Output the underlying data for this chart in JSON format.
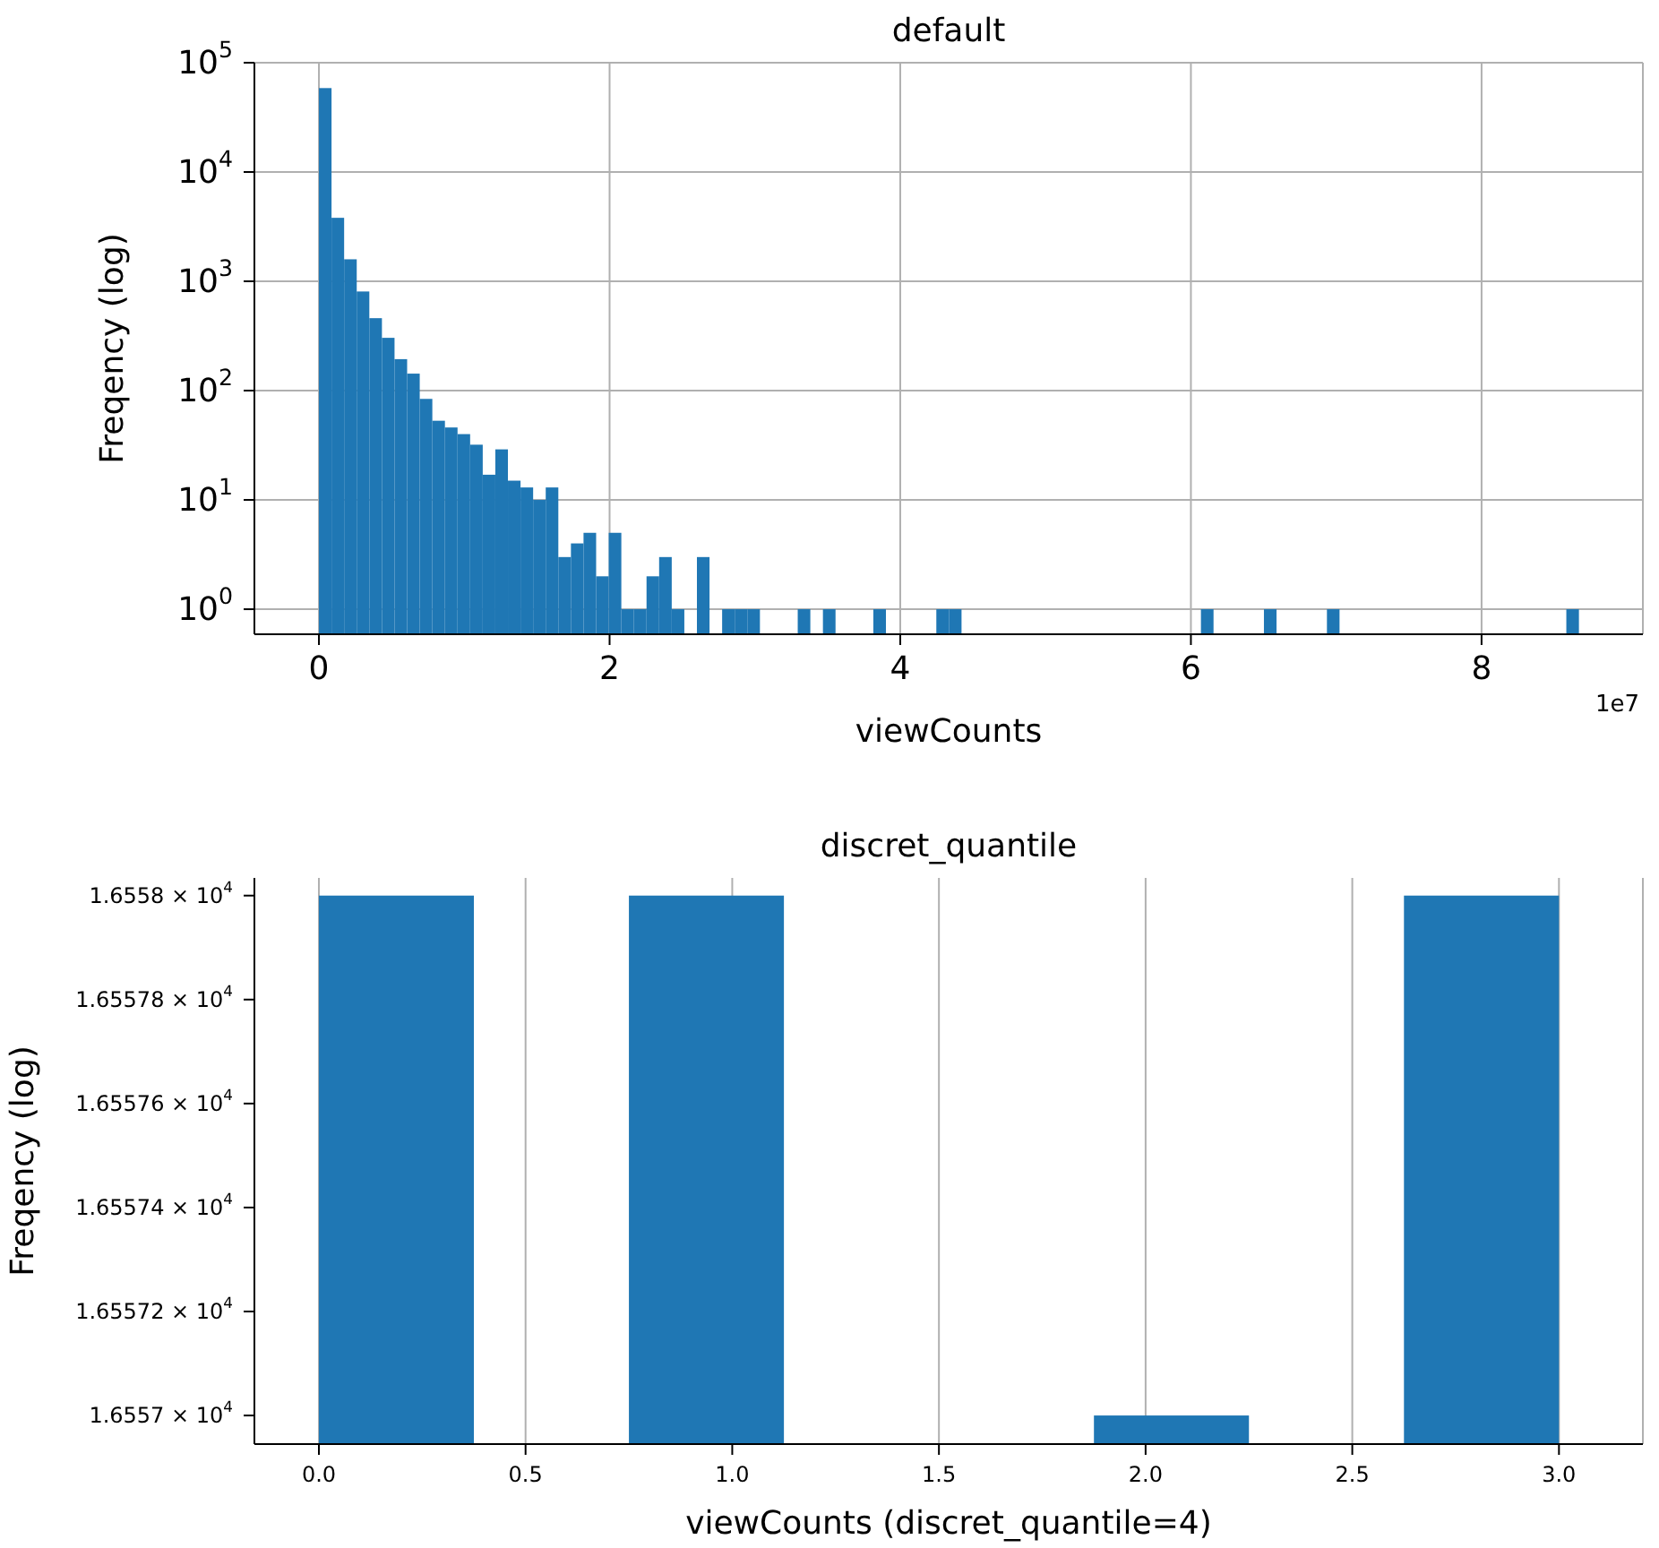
{
  "chart_data": [
    {
      "type": "histogram",
      "title": "default",
      "xlabel": "viewCounts",
      "ylabel": "Freqency (log)",
      "annotations": [
        "1e7"
      ],
      "bins": [
        0,
        0.0867,
        0.1734,
        0.2601,
        0.3468,
        0.4335,
        0.5202,
        0.6069,
        0.6936,
        0.7803,
        0.867,
        0.9537,
        1.0404,
        1.1271,
        1.2138,
        1.3005,
        1.3872,
        1.4739,
        1.5606,
        1.6473,
        1.734,
        1.8207,
        1.9074,
        1.9941,
        2.0808,
        2.1675,
        2.2542,
        2.3409,
        2.4276,
        2.5143,
        2.601,
        2.6877,
        2.7744,
        2.8611,
        2.9478,
        3.0345,
        3.1212,
        3.2079,
        3.2946,
        3.3813,
        3.468,
        3.5547,
        3.6414,
        3.7281,
        3.8148,
        3.9015,
        3.9882,
        4.0749,
        4.1616,
        4.2483,
        4.335,
        4.4217,
        4.5084,
        4.5951,
        4.6818,
        4.7685,
        4.8552,
        4.9419,
        5.0286,
        5.1153,
        5.202,
        5.2887,
        5.3754,
        5.4621,
        5.5488,
        5.6355,
        5.7222,
        5.8089,
        5.8956,
        5.9823,
        6.069,
        6.1557,
        6.2424,
        6.3291,
        6.4158,
        6.5025,
        6.5892,
        6.6759,
        6.7626,
        6.8493,
        6.936,
        7.0227,
        7.1094,
        7.1961,
        7.2828,
        7.3695,
        7.4562,
        7.5429,
        7.6296,
        7.7163,
        7.803,
        7.8897,
        7.9764,
        8.0631,
        8.1498,
        8.2365,
        8.3232,
        8.4099,
        8.4966,
        8.5833,
        8.67
      ],
      "values": [
        58600,
        3810,
        1590,
        807,
        460,
        304,
        194,
        143,
        84,
        53,
        46,
        40,
        32,
        17,
        29,
        15,
        13,
        10,
        13,
        3,
        4,
        5,
        2,
        5,
        1,
        1,
        2,
        3,
        1,
        null,
        3,
        null,
        1,
        1,
        1,
        null,
        null,
        null,
        1,
        null,
        1,
        null,
        null,
        null,
        1,
        null,
        null,
        null,
        null,
        1,
        1,
        null,
        null,
        null,
        null,
        null,
        null,
        null,
        null,
        null,
        null,
        null,
        null,
        null,
        null,
        null,
        null,
        null,
        null,
        null,
        1,
        null,
        null,
        null,
        null,
        1,
        null,
        null,
        null,
        null,
        1,
        null,
        null,
        null,
        null,
        null,
        null,
        null,
        null,
        null,
        null,
        null,
        null,
        null,
        null,
        null,
        null,
        null,
        null,
        1
      ],
      "color": "#1f77b4",
      "xlim": [
        -0.444,
        9.11
      ],
      "ylim": [
        0.59,
        100000
      ],
      "xticks": [
        0,
        2,
        4,
        6,
        8
      ],
      "yticks": [
        {
          "value": 1,
          "label": "10$^{0}$"
        },
        {
          "value": 10,
          "label": "10$^{1}$"
        },
        {
          "value": 100,
          "label": "10$^{2}$"
        },
        {
          "value": 1000,
          "label": "10$^{3}$"
        },
        {
          "value": 10000,
          "label": "10$^{4}$"
        },
        {
          "value": 100000,
          "label": "10$^{5}$"
        }
      ],
      "log": true,
      "grid": true
    },
    {
      "type": "histogram",
      "title": "discret_quantile",
      "xlabel": "viewCounts (discret_quantile=4)",
      "ylabel": "Freqency (log)",
      "bins": [
        0,
        0.375,
        0.75,
        1.125,
        1.5,
        1.875,
        2.25,
        2.625,
        3
      ],
      "values": [
        16558,
        null,
        16558,
        null,
        null,
        16557,
        null,
        16558
      ],
      "color": "#1f77b4",
      "xlim": [
        -0.156,
        3.203
      ],
      "ylim": [
        16556.945,
        16558.034
      ],
      "xticks": [
        {
          "value": 0,
          "label": "0.0"
        },
        0.5,
        {
          "value": 1,
          "label": "1.0"
        },
        1.5,
        {
          "value": 2,
          "label": "2.0"
        },
        2.5,
        {
          "value": 3,
          "label": "3.0"
        }
      ],
      "yticks": [
        {
          "value": 16557,
          "label": "1.6557 × 10$^{4}$"
        },
        {
          "value": 16557.2,
          "label": "1.65572 × 10$^{4}$"
        },
        {
          "value": 16557.4,
          "label": "1.65574 × 10$^{4}$"
        },
        {
          "value": 16557.6,
          "label": "1.65576 × 10$^{4}$"
        },
        {
          "value": 16557.8,
          "label": "1.65578 × 10$^{4}$"
        },
        {
          "value": 16558,
          "label": "1.6558 × 10$^{4}$"
        }
      ],
      "log": true,
      "grid": "x"
    }
  ]
}
